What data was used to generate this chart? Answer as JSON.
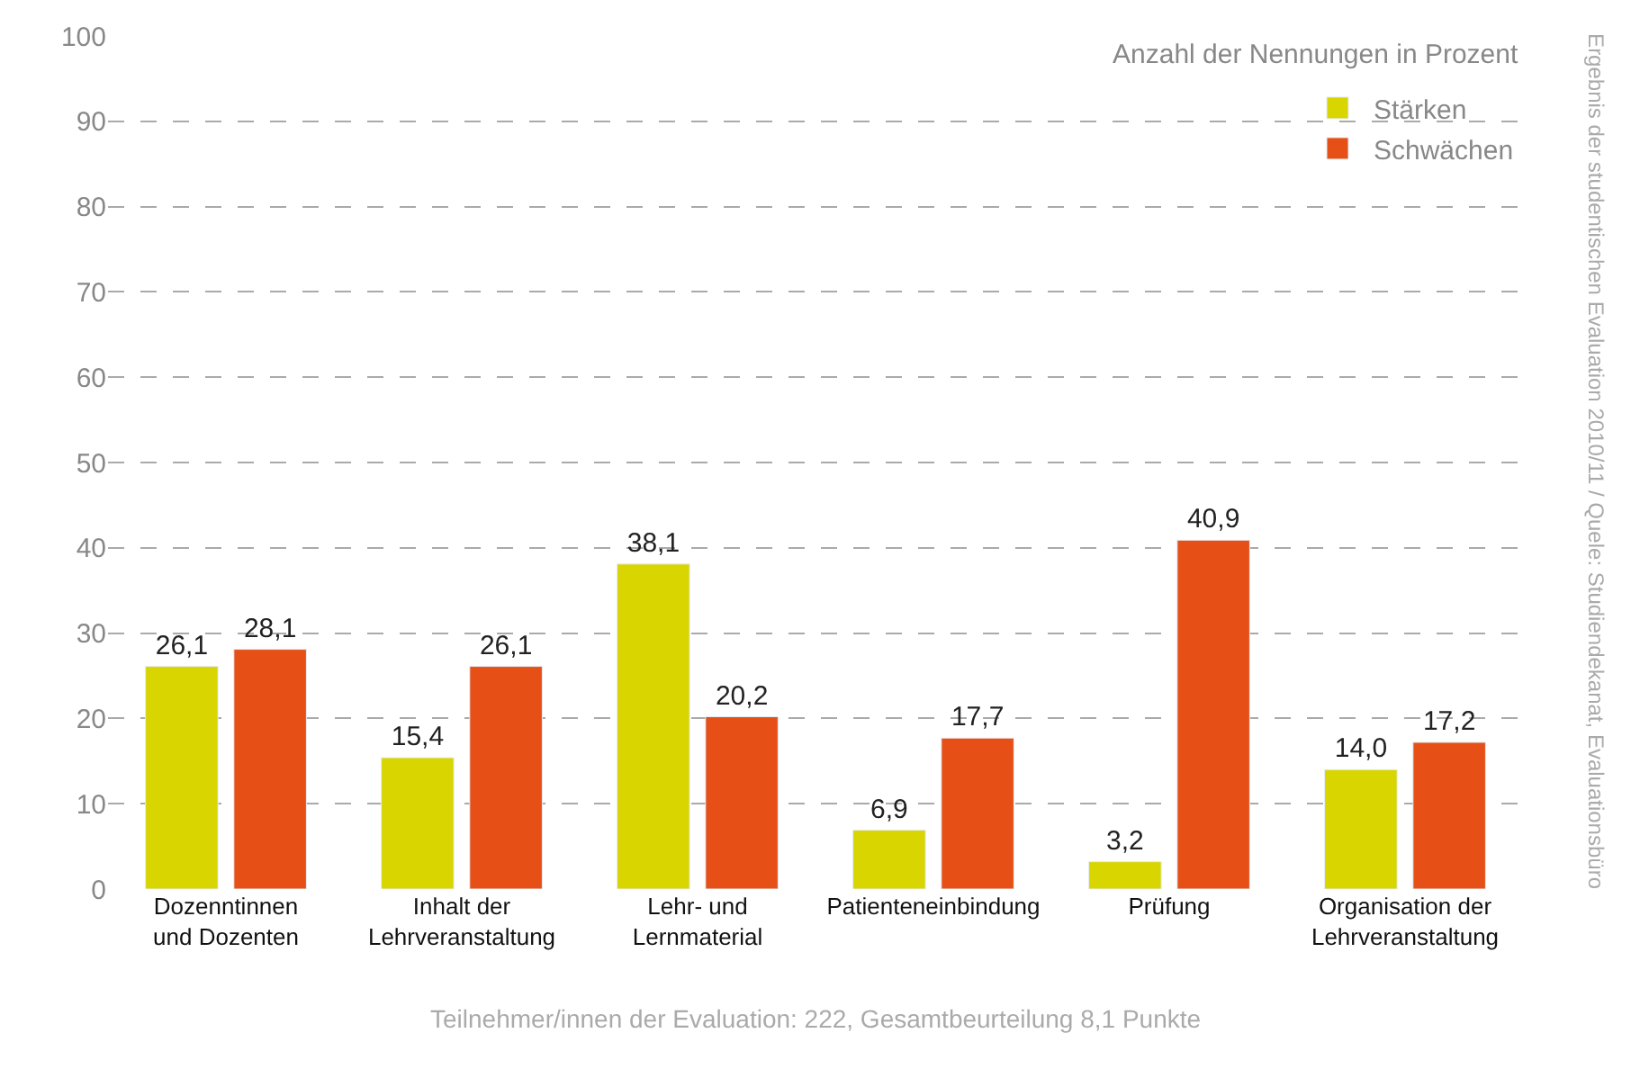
{
  "chart_data": {
    "type": "bar",
    "categories": [
      "Dozenntinnen\nund Dozenten",
      "Inhalt der\nLehrveranstaltung",
      "Lehr- und\nLernmaterial",
      "Patienteneinbindung",
      "Prüfung",
      "Organisation der\nLehrveranstaltung"
    ],
    "series": [
      {
        "name": "Stärken",
        "color": "#d8d500",
        "values": [
          26.1,
          15.4,
          38.1,
          6.9,
          3.2,
          14.0
        ],
        "value_labels": [
          "26,1",
          "15,4",
          "38,1",
          "6,9",
          "3,2",
          "14,0"
        ]
      },
      {
        "name": "Schwächen",
        "color": "#e65016",
        "values": [
          28.1,
          26.1,
          20.2,
          17.7,
          40.9,
          17.2
        ],
        "value_labels": [
          "28,1",
          "26,1",
          "20,2",
          "17,7",
          "40,9",
          "17,2"
        ]
      }
    ],
    "ylim": [
      0,
      100
    ],
    "yticks": [
      0,
      10,
      20,
      30,
      40,
      50,
      60,
      70,
      80,
      90,
      100
    ],
    "grid": "y",
    "legend": "top right",
    "annotations": [
      "Anzahl der Nennungen in Prozent",
      "Teilnehmer/innen der Evaluation: 222, Gesamtbeurteilung 8,1 Punkte",
      "Ergebnis der studentischen Evaluation 2010/11 / Quele: Studiendekanat, Evaluationsbüro"
    ]
  }
}
